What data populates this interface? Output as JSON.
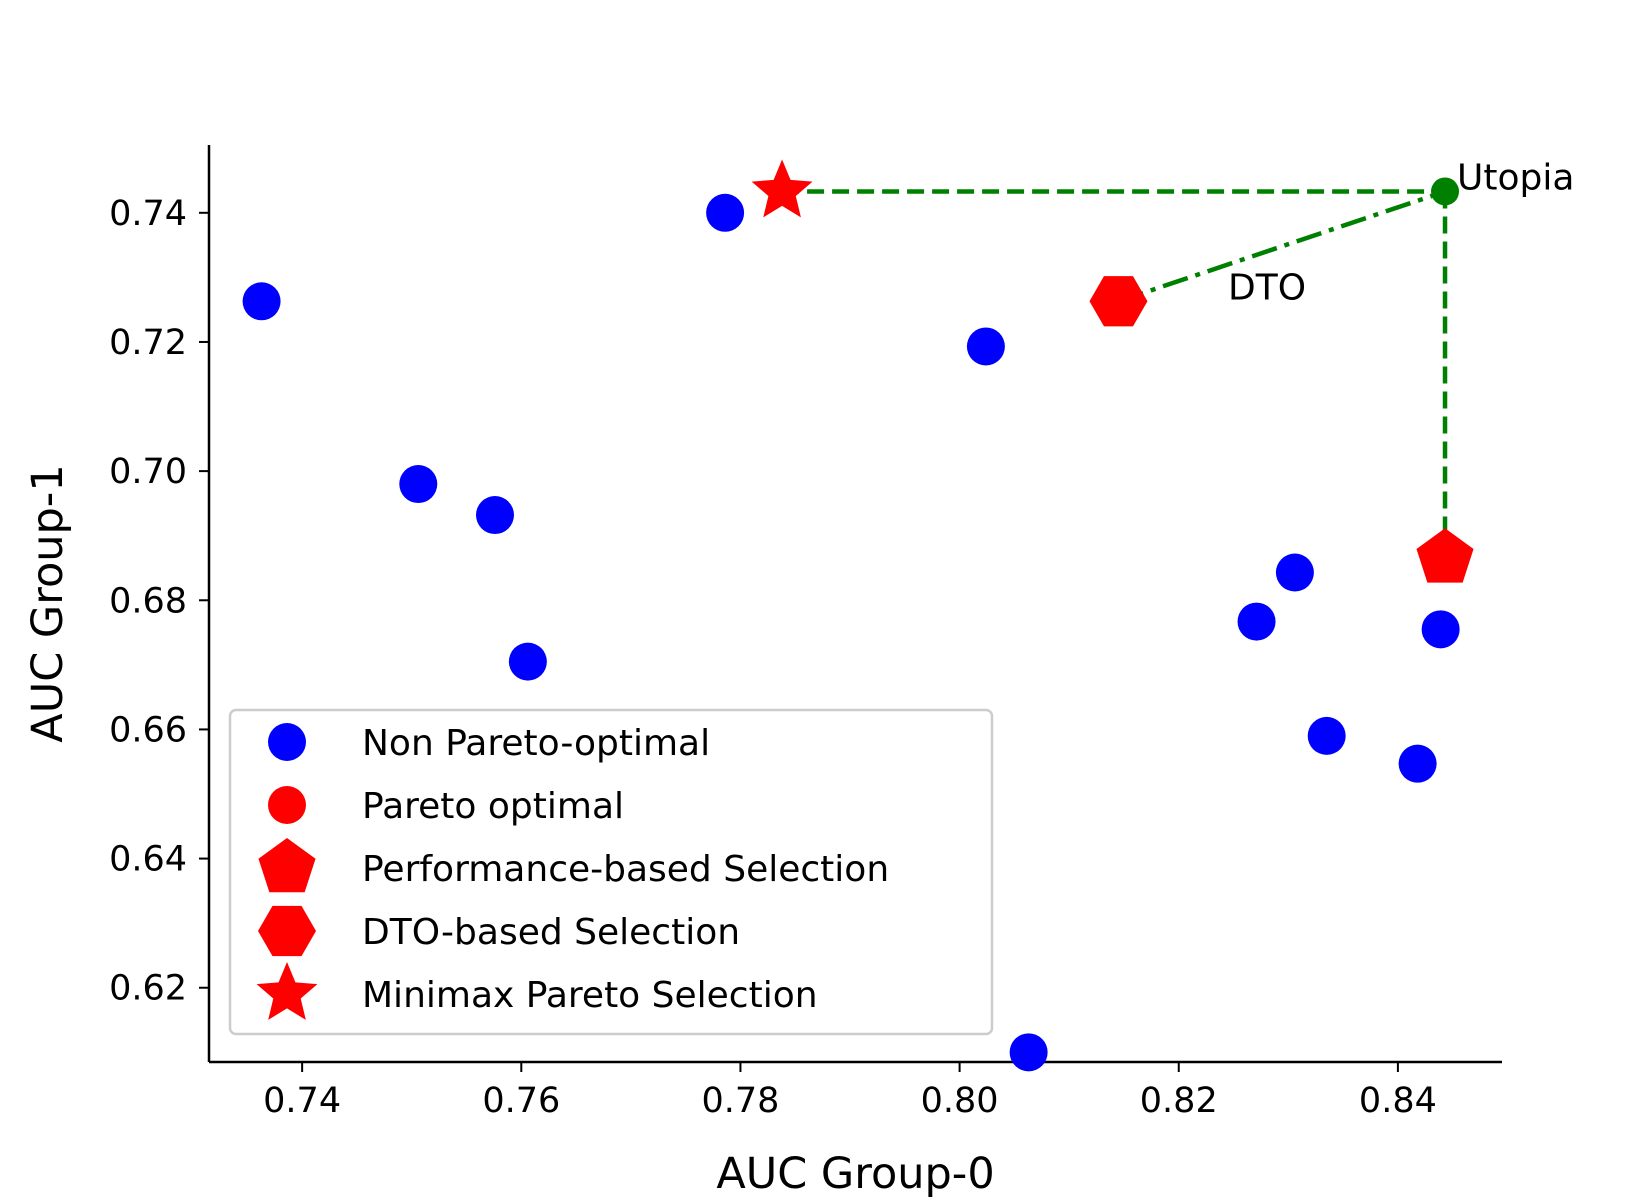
{
  "chart_data": {
    "type": "scatter",
    "xlabel": "AUC Group-0",
    "ylabel": "AUC Group-1",
    "xlim": [
      0.7315,
      0.8495
    ],
    "ylim": [
      0.6085,
      0.7505
    ],
    "grid": false,
    "legend_position": "lower-left",
    "xticks": [
      0.74,
      0.76,
      0.78,
      0.8,
      0.82,
      0.84
    ],
    "xtick_labels": [
      "0.74",
      "0.76",
      "0.78",
      "0.80",
      "0.82",
      "0.84"
    ],
    "yticks": [
      0.62,
      0.64,
      0.66,
      0.68,
      0.7,
      0.72,
      0.74
    ],
    "ytick_labels": [
      "0.62",
      "0.64",
      "0.66",
      "0.68",
      "0.70",
      "0.72",
      "0.74"
    ],
    "series": [
      {
        "name": "Non Pareto-optimal",
        "marker": "circle",
        "color": "#0000ff",
        "points": [
          {
            "x": 0.7363,
            "y": 0.7263
          },
          {
            "x": 0.7786,
            "y": 0.74
          },
          {
            "x": 0.7506,
            "y": 0.698
          },
          {
            "x": 0.7576,
            "y": 0.6932
          },
          {
            "x": 0.7606,
            "y": 0.6705
          },
          {
            "x": 0.8024,
            "y": 0.7193
          },
          {
            "x": 0.8271,
            "y": 0.6767
          },
          {
            "x": 0.8306,
            "y": 0.6843
          },
          {
            "x": 0.8335,
            "y": 0.659
          },
          {
            "x": 0.8418,
            "y": 0.6547
          },
          {
            "x": 0.8439,
            "y": 0.6755
          },
          {
            "x": 0.8063,
            "y": 0.61
          }
        ]
      },
      {
        "name": "Pareto optimal",
        "marker": "circle",
        "color": "#ff0000",
        "points": []
      },
      {
        "name": "Performance-based Selection",
        "marker": "pentagon",
        "color": "#ff0000",
        "points": [
          {
            "x": 0.8443,
            "y": 0.6865
          }
        ]
      },
      {
        "name": "DTO-based Selection",
        "marker": "hexagon",
        "color": "#ff0000",
        "points": [
          {
            "x": 0.8145,
            "y": 0.7263
          }
        ]
      },
      {
        "name": "Minimax Pareto Selection",
        "marker": "star",
        "color": "#ff0000",
        "points": [
          {
            "x": 0.7838,
            "y": 0.7433
          }
        ]
      }
    ],
    "utopia": {
      "x": 0.8443,
      "y": 0.7433,
      "color": "#008000"
    },
    "annotations": {
      "utopia_label": "Utopia",
      "dto_label": "DTO",
      "dto_label_pos": {
        "x": 0.8245,
        "y": 0.7263
      }
    },
    "lines": {
      "color": "#008000",
      "dashed": [
        [
          {
            "x": 0.7838,
            "y": 0.7433
          },
          {
            "x": 0.8443,
            "y": 0.7433
          }
        ],
        [
          {
            "x": 0.8443,
            "y": 0.7433
          },
          {
            "x": 0.8443,
            "y": 0.6865
          }
        ]
      ],
      "dash_dot": [
        [
          {
            "x": 0.8145,
            "y": 0.7263
          },
          {
            "x": 0.8443,
            "y": 0.7433
          }
        ]
      ]
    }
  }
}
